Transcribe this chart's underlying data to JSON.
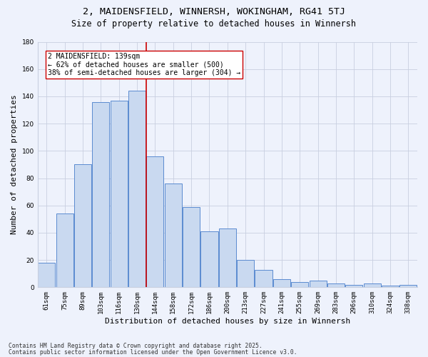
{
  "title1": "2, MAIDENSFIELD, WINNERSH, WOKINGHAM, RG41 5TJ",
  "title2": "Size of property relative to detached houses in Winnersh",
  "xlabel": "Distribution of detached houses by size in Winnersh",
  "ylabel": "Number of detached properties",
  "bar_labels": [
    "61sqm",
    "75sqm",
    "89sqm",
    "103sqm",
    "116sqm",
    "130sqm",
    "144sqm",
    "158sqm",
    "172sqm",
    "186sqm",
    "200sqm",
    "213sqm",
    "227sqm",
    "241sqm",
    "255sqm",
    "269sqm",
    "283sqm",
    "296sqm",
    "310sqm",
    "324sqm",
    "338sqm"
  ],
  "bar_values": [
    18,
    54,
    90,
    136,
    137,
    144,
    96,
    76,
    59,
    41,
    43,
    20,
    13,
    6,
    4,
    5,
    3,
    2,
    3,
    1,
    2
  ],
  "bar_color": "#c9d9f0",
  "bar_edge_color": "#5b8bd0",
  "vline_x": 5.5,
  "vline_color": "#cc0000",
  "annotation_text": "2 MAIDENSFIELD: 139sqm\n← 62% of detached houses are smaller (500)\n38% of semi-detached houses are larger (304) →",
  "ylim": [
    0,
    180
  ],
  "yticks": [
    0,
    20,
    40,
    60,
    80,
    100,
    120,
    140,
    160,
    180
  ],
  "footer1": "Contains HM Land Registry data © Crown copyright and database right 2025.",
  "footer2": "Contains public sector information licensed under the Open Government Licence v3.0.",
  "bg_color": "#eef2fc",
  "grid_color": "#c8cfe0",
  "title_fontsize": 9.5,
  "subtitle_fontsize": 8.5,
  "tick_fontsize": 6.5,
  "axis_label_fontsize": 8,
  "footer_fontsize": 5.8,
  "annot_fontsize": 7.0
}
